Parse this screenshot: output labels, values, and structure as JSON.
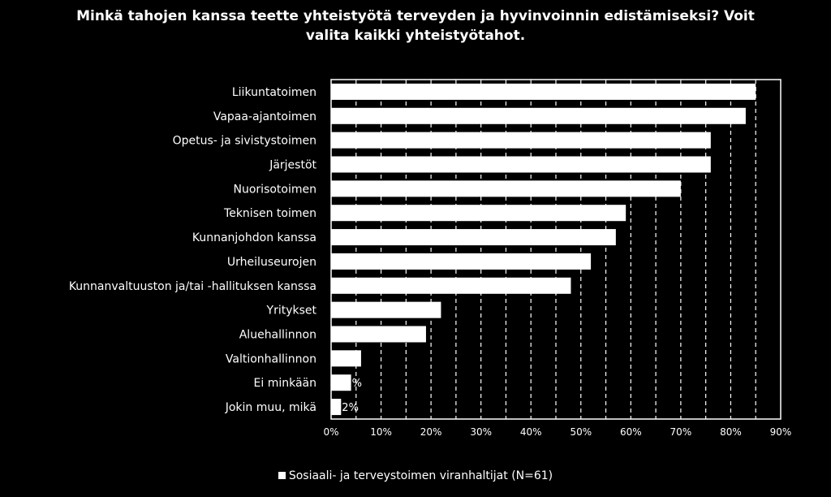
{
  "chart_data": {
    "type": "bar",
    "orientation": "horizontal",
    "title_lines": [
      "Minkä tahojen kanssa teette yhteistyötä terveyden ja hyvinvoinnin edistämiseksi? Voit",
      "valita kaikki yhteistyötahot."
    ],
    "categories": [
      "Liikuntatoimen",
      "Vapaa-ajantoimen",
      "Opetus- ja sivistystoimen",
      "Järjestöt",
      "Nuorisotoimen",
      "Teknisen toimen",
      "Kunnanjohdon kanssa",
      "Urheiluseurojen",
      "Kunnanvaltuuston ja/tai -hallituksen kanssa",
      "Yritykset",
      "Aluehallinnon",
      "Valtionhallinnon",
      "Ei minkään",
      "Jokin muu, mikä"
    ],
    "series": [
      {
        "name": "Sosiaali- ja terveystoimen viranhaltijat (N=61)",
        "values": [
          85,
          83,
          76,
          76,
          70,
          59,
          57,
          52,
          48,
          22,
          19,
          6,
          4,
          2
        ]
      }
    ],
    "data_labels": [
      "",
      "",
      "",
      "",
      "",
      "",
      "",
      "",
      "",
      "",
      "",
      "",
      "%",
      "2%"
    ],
    "x_ticks": [
      "0%",
      "10%",
      "20%",
      "30%",
      "40%",
      "50%",
      "60%",
      "70%",
      "80%",
      "90%"
    ],
    "xlim": [
      0,
      90
    ],
    "grid": "dashed vertical",
    "legend_position": "bottom",
    "colors": {
      "background": "#000000",
      "bar": "#ffffff",
      "text": "#ffffff",
      "grid": "#ffffff"
    }
  }
}
